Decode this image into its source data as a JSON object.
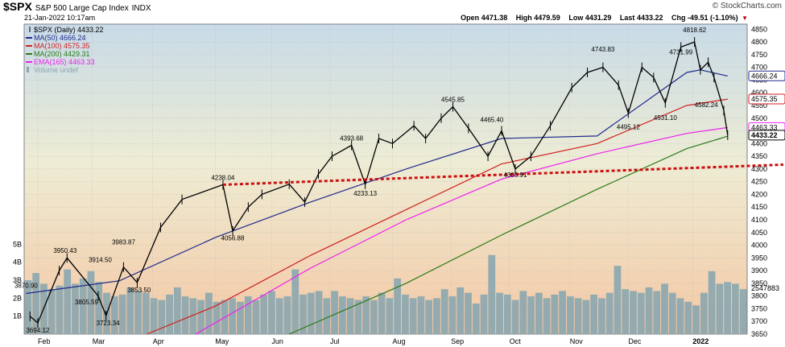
{
  "header": {
    "symbol": "$SPX",
    "name": "S&P 500 Large Cap Index",
    "exchange": "INDX",
    "date": "21-Jan-2022 10:17am",
    "credit": "© StockCharts.com",
    "open_label": "Open",
    "open": "4471.38",
    "high_label": "High",
    "high": "4479.59",
    "low_label": "Low",
    "low": "4431.29",
    "last_label": "Last",
    "last": "4433.22",
    "chg_label": "Chg",
    "chg": "-49.51 (-1.10%)",
    "down_color": "#c00000"
  },
  "legend": [
    {
      "text": "$SPX (Daily) 4433.22",
      "color": "#000000",
      "icon": "bar-icon"
    },
    {
      "text": "MA(50) 4666.24",
      "color": "#1f2a8c",
      "icon": "line-icon"
    },
    {
      "text": "MA(100) 4575.35",
      "color": "#d02020",
      "icon": "line-icon"
    },
    {
      "text": "MA(200) 4429.31",
      "color": "#2a7a18",
      "icon": "line-icon"
    },
    {
      "text": "EMA(165) 4463.33",
      "color": "#ee20ee",
      "icon": "line-icon"
    },
    {
      "text": "Volume undef",
      "color": "#8aa6b0",
      "icon": "volume-icon"
    }
  ],
  "chart_data": {
    "type": "line",
    "title": "$SPX S&P 500 Large Cap Index INDX",
    "ylim": [
      3650,
      4870
    ],
    "y_ticks": [
      3650,
      3700,
      3750,
      3800,
      3850,
      3900,
      3950,
      4000,
      4050,
      4100,
      4150,
      4200,
      4250,
      4300,
      4350,
      4400,
      4450,
      4500,
      4550,
      4600,
      4650,
      4700,
      4750,
      4800,
      4850
    ],
    "x_labels": [
      "Feb",
      "Mar",
      "Apr",
      "May",
      "Jun",
      "Jul",
      "Aug",
      "Sep",
      "Oct",
      "Nov",
      "Dec",
      "2022"
    ],
    "volume_ticks": [
      "1B",
      "2B",
      "3B",
      "4B",
      "5B"
    ],
    "price_series": {
      "name": "$SPX (Daily)",
      "color": "#000000",
      "x": [
        "2021-01-28",
        "2021-02-01",
        "2021-02-12",
        "2021-02-16",
        "2021-03-04",
        "2021-03-08",
        "2021-03-17",
        "2021-03-24",
        "2021-04-05",
        "2021-04-16",
        "2021-05-07",
        "2021-05-12",
        "2021-05-20",
        "2021-05-27",
        "2021-06-10",
        "2021-06-18",
        "2021-06-25",
        "2021-07-02",
        "2021-07-12",
        "2021-07-19",
        "2021-07-26",
        "2021-08-02",
        "2021-08-13",
        "2021-08-19",
        "2021-08-27",
        "2021-09-02",
        "2021-09-10",
        "2021-09-20",
        "2021-09-27",
        "2021-10-04",
        "2021-10-12",
        "2021-10-22",
        "2021-11-02",
        "2021-11-10",
        "2021-11-18",
        "2021-11-26",
        "2021-12-01",
        "2021-12-08",
        "2021-12-14",
        "2021-12-20",
        "2021-12-28",
        "2022-01-04",
        "2022-01-07",
        "2022-01-11",
        "2022-01-14",
        "2022-01-19",
        "2022-01-21"
      ],
      "y": [
        3720,
        3694,
        3900,
        3950,
        3800,
        3723,
        3914,
        3853,
        4070,
        4180,
        4238,
        4056,
        4150,
        4200,
        4240,
        4170,
        4280,
        4350,
        4393,
        4240,
        4420,
        4400,
        4470,
        4420,
        4500,
        4545,
        4460,
        4350,
        4450,
        4300,
        4350,
        4470,
        4620,
        4680,
        4700,
        4630,
        4520,
        4700,
        4660,
        4560,
        4780,
        4800,
        4690,
        4720,
        4660,
        4530,
        4433
      ]
    },
    "ma_series": [
      {
        "name": "MA(50)",
        "color": "#1f2a8c",
        "x": [
          "2021-01-26",
          "2021-03-15",
          "2021-05-03",
          "2021-06-21",
          "2021-08-09",
          "2021-09-27",
          "2021-11-15",
          "2021-12-31",
          "2022-01-07",
          "2022-01-21"
        ],
        "y": [
          3810,
          3860,
          4030,
          4170,
          4300,
          4420,
          4430,
          4680,
          4690,
          4666
        ]
      },
      {
        "name": "MA(100)",
        "color": "#d02020",
        "x": [
          "2021-03-29",
          "2021-05-03",
          "2021-06-21",
          "2021-08-09",
          "2021-09-27",
          "2021-11-15",
          "2021-12-31",
          "2022-01-21"
        ],
        "y": [
          3650,
          3760,
          3960,
          4140,
          4320,
          4400,
          4550,
          4575
        ]
      },
      {
        "name": "MA(200)",
        "color": "#2a7a18",
        "x": [
          "2021-06-10",
          "2021-08-09",
          "2021-09-27",
          "2021-11-15",
          "2021-12-31",
          "2022-01-21"
        ],
        "y": [
          3650,
          3850,
          4040,
          4220,
          4380,
          4429
        ]
      },
      {
        "name": "EMA(165)",
        "color": "#ee20ee",
        "x": [
          "2021-04-23",
          "2021-06-21",
          "2021-08-09",
          "2021-09-27",
          "2021-11-15",
          "2021-12-31",
          "2022-01-21"
        ],
        "y": [
          3650,
          3910,
          4100,
          4260,
          4360,
          4440,
          4463
        ]
      }
    ],
    "support_line": {
      "color": "#cc1010",
      "x": [
        "2021-05-07",
        "2022-01-31"
      ],
      "y": [
        4238,
        4314
      ]
    },
    "annotations": [
      {
        "text": "3870.90",
        "x": "2021-01-26",
        "y": 3870.9,
        "pos": "below"
      },
      {
        "text": "3694.12",
        "x": "2021-02-01",
        "y": 3694.12,
        "pos": "below"
      },
      {
        "text": "3950.43",
        "x": "2021-02-15",
        "y": 3950.43,
        "pos": "above"
      },
      {
        "text": "3805.59",
        "x": "2021-02-26",
        "y": 3805.59,
        "pos": "below"
      },
      {
        "text": "3914.50",
        "x": "2021-03-05",
        "y": 3914.5,
        "pos": "above"
      },
      {
        "text": "3723.34",
        "x": "2021-03-09",
        "y": 3723.34,
        "pos": "below"
      },
      {
        "text": "3983.87",
        "x": "2021-03-17",
        "y": 3983.87,
        "pos": "above"
      },
      {
        "text": "3853.50",
        "x": "2021-03-25",
        "y": 3853.5,
        "pos": "below"
      },
      {
        "text": "4238.04",
        "x": "2021-05-07",
        "y": 4238.04,
        "pos": "above"
      },
      {
        "text": "4056.88",
        "x": "2021-05-12",
        "y": 4056.88,
        "pos": "below"
      },
      {
        "text": "4393.68",
        "x": "2021-07-12",
        "y": 4393.68,
        "pos": "above"
      },
      {
        "text": "4233.13",
        "x": "2021-07-19",
        "y": 4233.13,
        "pos": "below"
      },
      {
        "text": "4545.85",
        "x": "2021-09-02",
        "y": 4545.85,
        "pos": "above"
      },
      {
        "text": "4465.40",
        "x": "2021-09-22",
        "y": 4465.4,
        "pos": "above"
      },
      {
        "text": "4305.91",
        "x": "2021-10-04",
        "y": 4305.91,
        "pos": "below"
      },
      {
        "text": "4743.83",
        "x": "2021-11-18",
        "y": 4743.83,
        "pos": "above"
      },
      {
        "text": "4495.12",
        "x": "2021-12-01",
        "y": 4495.12,
        "pos": "below"
      },
      {
        "text": "4531.10",
        "x": "2021-12-20",
        "y": 4531.1,
        "pos": "below"
      },
      {
        "text": "4731.99",
        "x": "2021-12-28",
        "y": 4731.99,
        "pos": "above"
      },
      {
        "text": "4818.62",
        "x": "2022-01-04",
        "y": 4818.62,
        "pos": "above"
      },
      {
        "text": "4582.24",
        "x": "2022-01-10",
        "y": 4582.24,
        "pos": "below"
      }
    ],
    "last_value_tags": [
      {
        "text": "4666.24",
        "y": 4666.24,
        "color": "#1f2a8c"
      },
      {
        "text": "4575.35",
        "y": 4575.35,
        "color": "#d02020"
      },
      {
        "text": "4463.33",
        "y": 4463.33,
        "color": "#ee20ee"
      },
      {
        "text": "4433.22",
        "y": 4433.22,
        "color": "#000000",
        "bold": true
      }
    ],
    "volume_last": "2547883",
    "volume_values_billion": [
      3.0,
      3.4,
      2.8,
      2.5,
      2.7,
      3.6,
      2.8,
      3.1,
      3.5,
      2.9,
      2.3,
      2.1,
      2.2,
      2.6,
      2.4,
      2.3,
      2.0,
      1.9,
      2.2,
      2.6,
      2.1,
      2.0,
      1.9,
      2.3,
      1.8,
      1.9,
      2.0,
      1.8,
      2.1,
      1.9,
      2.2,
      2.4,
      2.0,
      2.1,
      3.6,
      2.2,
      2.3,
      2.4,
      2.0,
      2.4,
      2.1,
      2.0,
      1.9,
      2.1,
      1.9,
      2.3,
      2.0,
      3.1,
      2.2,
      2.0,
      2.1,
      1.9,
      2.0,
      2.5,
      2.1,
      2.6,
      2.3,
      1.7,
      2.2,
      4.4,
      2.3,
      2.2,
      1.9,
      2.4,
      2.1,
      2.3,
      2.0,
      2.2,
      2.4,
      2.1,
      2.0,
      1.9,
      2.2,
      2.0,
      2.3,
      3.8,
      2.5,
      2.4,
      2.3,
      2.6,
      2.4,
      2.8,
      2.3,
      2.0,
      1.8,
      1.6,
      2.3,
      3.5,
      2.8,
      2.9,
      2.8,
      2.5
    ],
    "grid": true,
    "legend_position": "top-left"
  }
}
